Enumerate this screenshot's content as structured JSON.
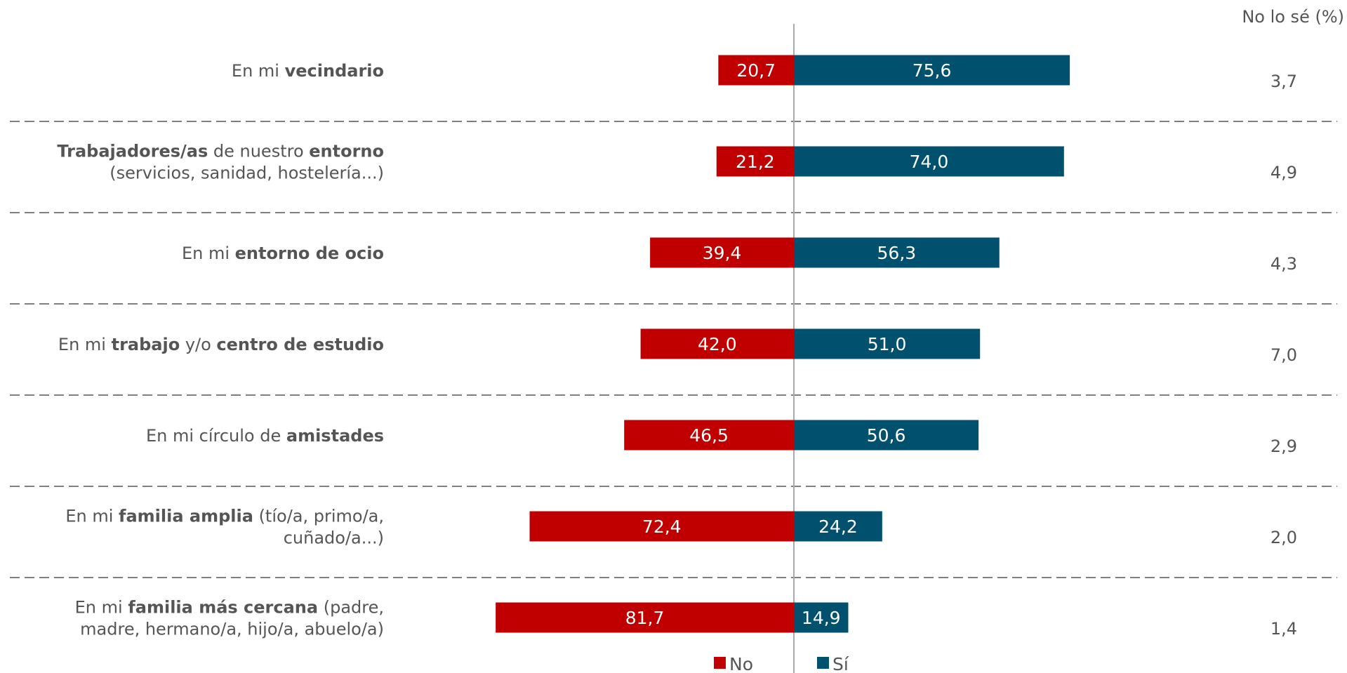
{
  "chart_data": {
    "type": "bar",
    "orientation": "horizontal-diverging",
    "categories": [
      [
        {
          "t": "En mi "
        },
        {
          "t": "vecindario",
          "b": true
        }
      ],
      [
        {
          "t": "Trabajadores/as",
          "b": true
        },
        {
          "t": " de nuestro "
        },
        {
          "t": "entorno",
          "b": true
        },
        {
          "t": "\n(servicios, sanidad, hostelería...)"
        }
      ],
      [
        {
          "t": "En mi "
        },
        {
          "t": "entorno de ocio",
          "b": true
        }
      ],
      [
        {
          "t": "En mi "
        },
        {
          "t": "trabajo",
          "b": true
        },
        {
          "t": " y/o "
        },
        {
          "t": "centro de estudio",
          "b": true
        }
      ],
      [
        {
          "t": "En mi círculo de "
        },
        {
          "t": "amistades",
          "b": true
        }
      ],
      [
        {
          "t": "En mi "
        },
        {
          "t": "familia amplia",
          "b": true
        },
        {
          "t": " (tío/a, primo/a,\ncuñado/a...)"
        }
      ],
      [
        {
          "t": "En mi "
        },
        {
          "t": "familia más cercana",
          "b": true
        },
        {
          "t": " (padre,\nmadre, hermano/a, hijo/a, abuelo/a)"
        }
      ]
    ],
    "series": [
      {
        "name": "No",
        "color": "#c00000",
        "values": [
          20.7,
          21.2,
          39.4,
          42.0,
          46.5,
          72.4,
          81.7
        ]
      },
      {
        "name": "Sí",
        "color": "#00506e",
        "values": [
          75.6,
          74.0,
          56.3,
          51.0,
          50.6,
          24.2,
          14.9
        ]
      }
    ],
    "no_lo_se": {
      "header": "No lo sé (%)",
      "values": [
        3.7,
        4.9,
        4.3,
        7.0,
        2.9,
        2.0,
        1.4
      ]
    },
    "decimal_separator": ",",
    "legend_position": "bottom",
    "grid": false,
    "row_separators": "dashed"
  }
}
